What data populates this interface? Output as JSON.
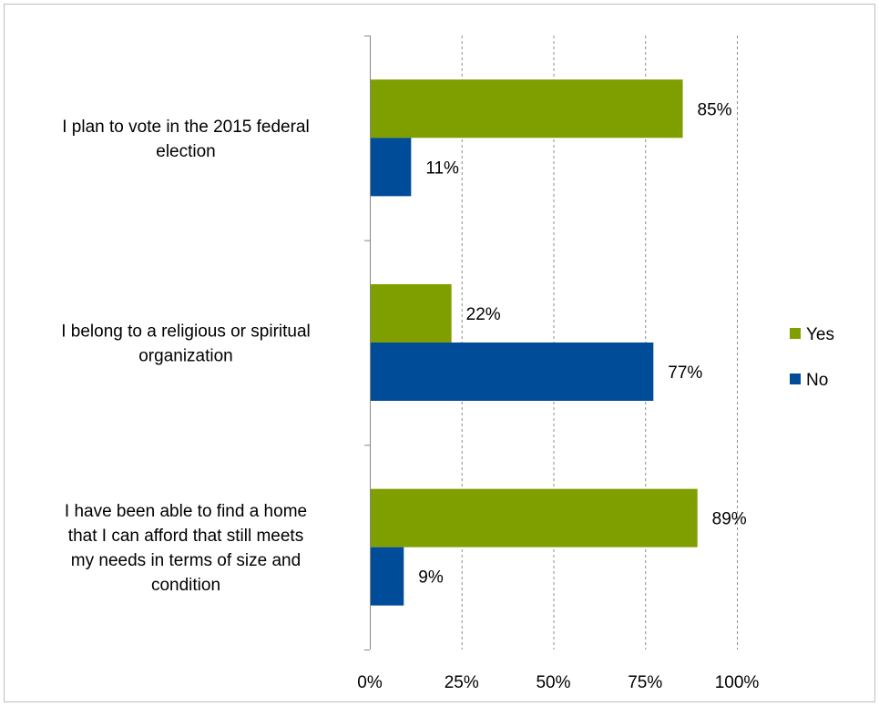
{
  "chart_data": {
    "type": "bar",
    "orientation": "horizontal",
    "categories": [
      "I plan to vote in the 2015 federal election",
      "I belong to a religious or spiritual organization",
      "I have been able to find a home that I can afford that still meets my needs in terms of size and condition"
    ],
    "category_lines": [
      [
        "I plan to vote in the 2015 federal",
        "election"
      ],
      [
        "I belong to a religious or spiritual",
        "organization"
      ],
      [
        "I have been able to find a home",
        "that I can afford that still meets",
        "my needs in terms of size and",
        "condition"
      ]
    ],
    "series": [
      {
        "name": "Yes",
        "values": [
          85,
          22,
          89
        ],
        "labels": [
          "85%",
          "22%",
          "89%"
        ],
        "color": "#7f9f00"
      },
      {
        "name": "No",
        "values": [
          11,
          77,
          9
        ],
        "labels": [
          "11%",
          "77%",
          "9%"
        ],
        "color": "#004c99"
      }
    ],
    "xlim": [
      0,
      100
    ],
    "xticks": [
      0,
      25,
      50,
      75,
      100
    ],
    "xtick_labels": [
      "0%",
      "25%",
      "50%",
      "75%",
      "100%"
    ],
    "grid": "vertical-dashed",
    "legend": "right"
  }
}
